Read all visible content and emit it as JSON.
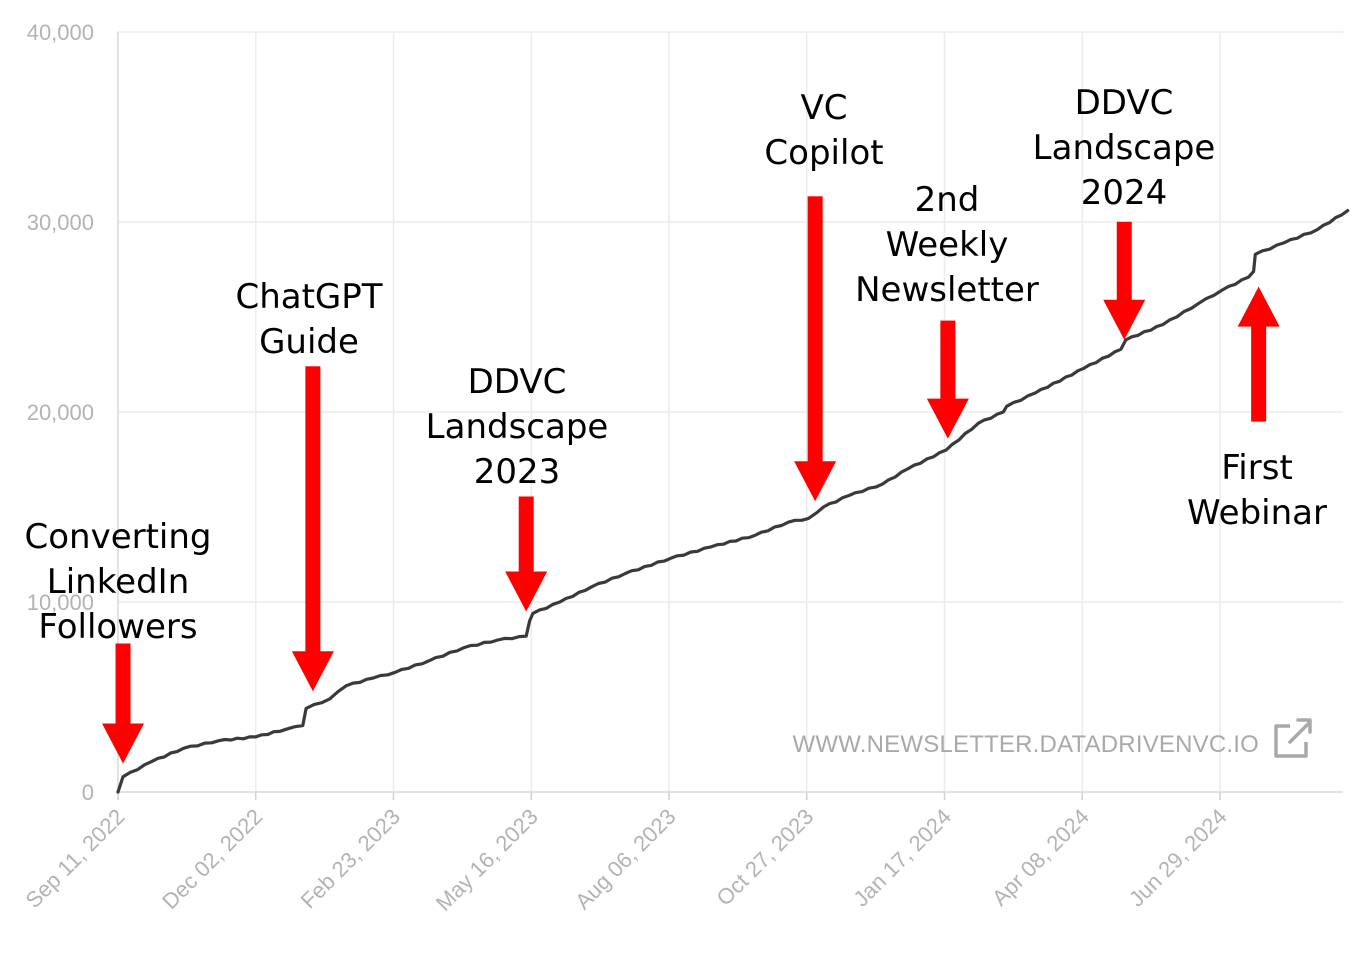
{
  "chart_data": {
    "type": "line",
    "xlabel": "",
    "ylabel": "",
    "ylim": [
      0,
      40000
    ],
    "x_tick_labels": [
      "Sep 11, 2022",
      "Dec 02, 2022",
      "Feb 23, 2023",
      "May 16, 2023",
      "Aug 06, 2023",
      "Oct 27, 2023",
      "Jan 17, 2024",
      "Apr 08, 2024",
      "Jun 29, 2024"
    ],
    "y_tick_labels": [
      "0",
      "10,000",
      "20,000",
      "30,000",
      "40,000"
    ],
    "y_ticks": [
      0,
      10000,
      20000,
      30000,
      40000
    ],
    "grid": true,
    "line_color": "#3a3a3a",
    "series": [
      {
        "x": [
          "2022-09-11",
          "2022-09-14",
          "2022-10-01",
          "2022-10-20",
          "2022-11-10",
          "2022-12-02",
          "2022-12-20",
          "2022-12-30",
          "2023-01-01",
          "2023-01-15",
          "2023-01-25",
          "2023-02-10",
          "2023-02-23",
          "2023-03-15",
          "2023-04-05",
          "2023-04-25",
          "2023-05-12",
          "2023-05-14",
          "2023-05-16",
          "2023-06-01",
          "2023-06-20",
          "2023-07-10",
          "2023-08-06",
          "2023-08-30",
          "2023-09-25",
          "2023-10-15",
          "2023-10-27",
          "2023-11-01",
          "2023-11-05",
          "2023-11-20",
          "2023-12-10",
          "2023-12-25",
          "2024-01-17",
          "2024-02-05",
          "2024-02-20",
          "2024-02-22",
          "2024-03-10",
          "2024-04-08",
          "2024-04-30",
          "2024-05-03",
          "2024-05-25",
          "2024-06-15",
          "2024-06-29",
          "2024-07-15",
          "2024-07-18",
          "2024-07-19",
          "2024-08-05",
          "2024-08-25",
          "2024-09-12"
        ],
        "y": [
          0,
          800,
          1600,
          2300,
          2700,
          2900,
          3300,
          3500,
          4400,
          4900,
          5600,
          6000,
          6300,
          6900,
          7600,
          8000,
          8200,
          9000,
          9400,
          10000,
          10800,
          11500,
          12300,
          12900,
          13500,
          14200,
          14400,
          14700,
          15000,
          15600,
          16200,
          17000,
          18000,
          19400,
          20000,
          20300,
          21000,
          22300,
          23300,
          23800,
          24600,
          25700,
          26400,
          27100,
          27400,
          28300,
          28900,
          29600,
          30600
        ]
      }
    ],
    "annotations": [
      {
        "lines": [
          "Converting",
          "LinkedIn",
          "Followers"
        ],
        "x": "2022-09-14",
        "y": 1500,
        "direction": "down"
      },
      {
        "lines": [
          "ChatGPT",
          "Guide"
        ],
        "x": "2023-01-05",
        "y": 5300,
        "direction": "down"
      },
      {
        "lines": [
          "DDVC",
          "Landscape",
          "2023"
        ],
        "x": "2023-05-12",
        "y": 9500,
        "direction": "down"
      },
      {
        "lines": [
          "VC",
          "Copilot"
        ],
        "x": "2023-10-31",
        "y": 15300,
        "direction": "down"
      },
      {
        "lines": [
          "2nd",
          "Weekly",
          "Newsletter"
        ],
        "x": "2024-01-18",
        "y": 18600,
        "direction": "down"
      },
      {
        "lines": [
          "DDVC",
          "Landscape",
          "2024"
        ],
        "x": "2024-05-02",
        "y": 23800,
        "direction": "down"
      },
      {
        "lines": [
          "First",
          "Webinar"
        ],
        "x": "2024-07-21",
        "y": 26600,
        "direction": "up"
      }
    ],
    "arrow_color": "#ff0000",
    "watermark": "WWW.NEWSLETTER.DATADRIVENVC.IO"
  }
}
